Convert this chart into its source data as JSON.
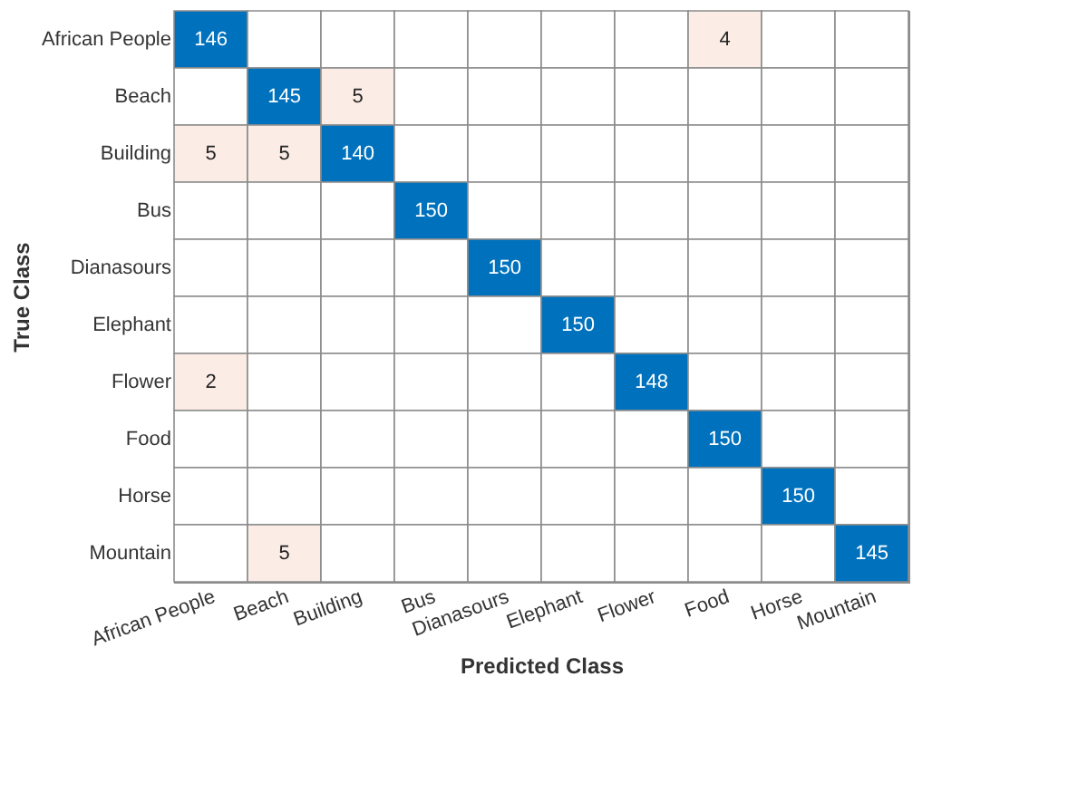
{
  "chart_data": {
    "type": "heatmap",
    "xlabel": "Predicted Class",
    "ylabel": "True Class",
    "categories": [
      "African People",
      "Beach",
      "Building",
      "Bus",
      "Dianasours",
      "Elephant",
      "Flower",
      "Food",
      "Horse",
      "Mountain"
    ],
    "y_categories": [
      "African People",
      "Beach",
      "Building",
      "Bus",
      "Dianasours",
      "Elephant",
      "Flower",
      "Food",
      "Horse",
      "Mountain"
    ],
    "colors": [
      "#0072bd",
      "#fbece6"
    ],
    "cells": [
      [
        146,
        null,
        null,
        null,
        null,
        null,
        null,
        4,
        null,
        null
      ],
      [
        null,
        145,
        5,
        null,
        null,
        null,
        null,
        null,
        null,
        null
      ],
      [
        5,
        5,
        140,
        null,
        null,
        null,
        null,
        null,
        null,
        null
      ],
      [
        null,
        null,
        null,
        150,
        null,
        null,
        null,
        null,
        null,
        null
      ],
      [
        null,
        null,
        null,
        null,
        150,
        null,
        null,
        null,
        null,
        null
      ],
      [
        null,
        null,
        null,
        null,
        null,
        150,
        null,
        null,
        null,
        null
      ],
      [
        2,
        null,
        null,
        null,
        null,
        null,
        148,
        null,
        null,
        null
      ],
      [
        null,
        null,
        null,
        null,
        null,
        null,
        null,
        150,
        null,
        null
      ],
      [
        null,
        null,
        null,
        null,
        null,
        null,
        null,
        null,
        150,
        null
      ],
      [
        null,
        5,
        null,
        null,
        null,
        null,
        null,
        null,
        null,
        145
      ]
    ],
    "data_labels": true
  }
}
